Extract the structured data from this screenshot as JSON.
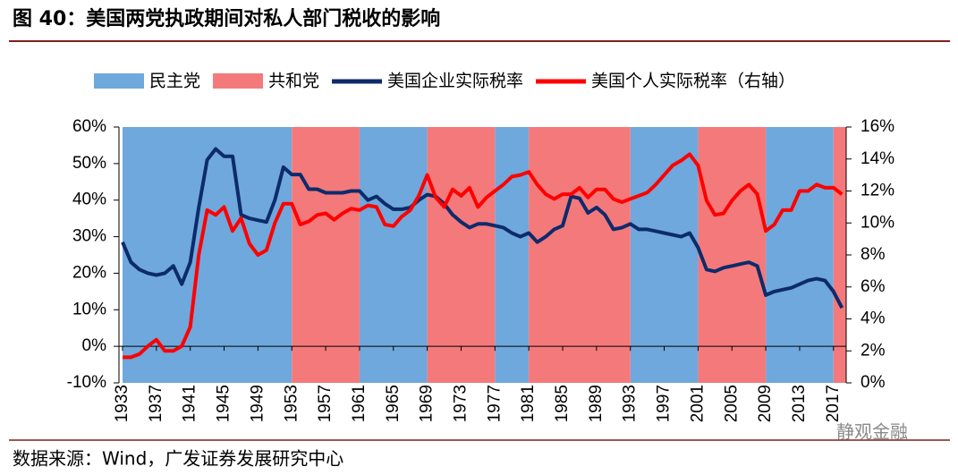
{
  "chart_data": {
    "type": "line",
    "title": "图 40：美国两党执政期间对私人部门税收的影响",
    "source": "数据来源：Wind，广发证券发展研究中心",
    "watermark": "静观金融",
    "shading": [
      {
        "name": "民主党",
        "color": "#6fa8dc",
        "ranges": [
          [
            1933,
            1953
          ],
          [
            1961,
            1969
          ],
          [
            1977,
            1981
          ],
          [
            1993,
            2001
          ],
          [
            2009,
            2017
          ]
        ]
      },
      {
        "name": "共和党",
        "color": "#f4797b",
        "ranges": [
          [
            1953,
            1961
          ],
          [
            1969,
            1977
          ],
          [
            1981,
            1993
          ],
          [
            2001,
            2009
          ],
          [
            2017,
            2018.5
          ]
        ]
      }
    ],
    "x": [
      1933,
      1934,
      1935,
      1936,
      1937,
      1938,
      1939,
      1940,
      1941,
      1942,
      1943,
      1944,
      1945,
      1946,
      1947,
      1948,
      1949,
      1950,
      1951,
      1952,
      1953,
      1954,
      1955,
      1956,
      1957,
      1958,
      1959,
      1960,
      1961,
      1962,
      1963,
      1964,
      1965,
      1966,
      1967,
      1968,
      1969,
      1970,
      1971,
      1972,
      1973,
      1974,
      1975,
      1976,
      1977,
      1978,
      1979,
      1980,
      1981,
      1982,
      1983,
      1984,
      1985,
      1986,
      1987,
      1988,
      1989,
      1990,
      1991,
      1992,
      1993,
      1994,
      1995,
      1996,
      1997,
      1998,
      1999,
      2000,
      2001,
      2002,
      2003,
      2004,
      2005,
      2006,
      2007,
      2008,
      2009,
      2010,
      2011,
      2012,
      2013,
      2014,
      2015,
      2016,
      2017,
      2018
    ],
    "series": [
      {
        "name": "美国企业实际税率",
        "color": "#0d2b6b",
        "axis": "y",
        "values": [
          28.5,
          23,
          21,
          20,
          19.5,
          20,
          22,
          17,
          23,
          38,
          51,
          54,
          52,
          52,
          36,
          35,
          34.5,
          34,
          40,
          49,
          47,
          47,
          43,
          43,
          42,
          42,
          42,
          42.5,
          42.5,
          40,
          41,
          39,
          37.5,
          37.5,
          38,
          40,
          41.5,
          41,
          39,
          36,
          34,
          32.5,
          33.5,
          33.5,
          33,
          32.5,
          31,
          30,
          31,
          28.5,
          30,
          32,
          33,
          41,
          40.5,
          36.5,
          38,
          36,
          32,
          32.5,
          33.5,
          32,
          32,
          31.5,
          31,
          30.5,
          30,
          31,
          27,
          21,
          20.5,
          21.5,
          22,
          22.5,
          23,
          22,
          14,
          15,
          15.5,
          16,
          17,
          18,
          18.5,
          18,
          15,
          10.5
        ]
      },
      {
        "name": "美国个人实际税率（右轴）",
        "color": "#ff0000",
        "axis": "y2",
        "values": [
          1.6,
          1.6,
          1.8,
          2.3,
          2.7,
          2.0,
          2.0,
          2.3,
          3.5,
          8,
          10.8,
          10.5,
          11.0,
          9.5,
          10.3,
          8.7,
          8.0,
          8.3,
          10.0,
          11.2,
          11.2,
          9.9,
          10.1,
          10.5,
          10.6,
          10.2,
          10.6,
          10.9,
          10.8,
          11.1,
          11.0,
          9.9,
          9.8,
          10.4,
          10.8,
          11.7,
          13.0,
          11.6,
          11.0,
          12.1,
          11.7,
          12.2,
          11.0,
          11.6,
          12.0,
          12.4,
          12.9,
          13.0,
          13.2,
          12.4,
          11.8,
          11.5,
          11.8,
          11.8,
          12.2,
          11.6,
          12.1,
          12.1,
          11.5,
          11.3,
          11.5,
          11.7,
          11.9,
          12.4,
          13.0,
          13.6,
          13.9,
          14.3,
          13.6,
          11.4,
          10.5,
          10.6,
          11.4,
          12.0,
          12.4,
          11.8,
          9.5,
          9.9,
          10.8,
          10.8,
          12.0,
          12.0,
          12.4,
          12.2,
          12.2,
          11.8
        ]
      }
    ],
    "xlim": [
      1933,
      2018.5
    ],
    "xticks": [
      1933,
      1937,
      1941,
      1945,
      1949,
      1953,
      1957,
      1961,
      1965,
      1969,
      1973,
      1977,
      1981,
      1985,
      1989,
      1993,
      1997,
      2001,
      2005,
      2009,
      2013,
      2017
    ],
    "ylim": [
      -10,
      60
    ],
    "yticks": [
      {
        "value": -10,
        "label": "-10%"
      },
      {
        "value": 0,
        "label": "0%"
      },
      {
        "value": 10,
        "label": "10%"
      },
      {
        "value": 20,
        "label": "20%"
      },
      {
        "value": 30,
        "label": "30%"
      },
      {
        "value": 40,
        "label": "40%"
      },
      {
        "value": 50,
        "label": "50%"
      },
      {
        "value": 60,
        "label": "60%"
      }
    ],
    "y2lim": [
      0,
      16
    ],
    "y2ticks": [
      {
        "value": 0,
        "label": "0%"
      },
      {
        "value": 2,
        "label": "2%"
      },
      {
        "value": 4,
        "label": "4%"
      },
      {
        "value": 6,
        "label": "6%"
      },
      {
        "value": 8,
        "label": "8%"
      },
      {
        "value": 10,
        "label": "10%"
      },
      {
        "value": 12,
        "label": "12%"
      },
      {
        "value": 14,
        "label": "14%"
      },
      {
        "value": 16,
        "label": "16%"
      }
    ]
  }
}
